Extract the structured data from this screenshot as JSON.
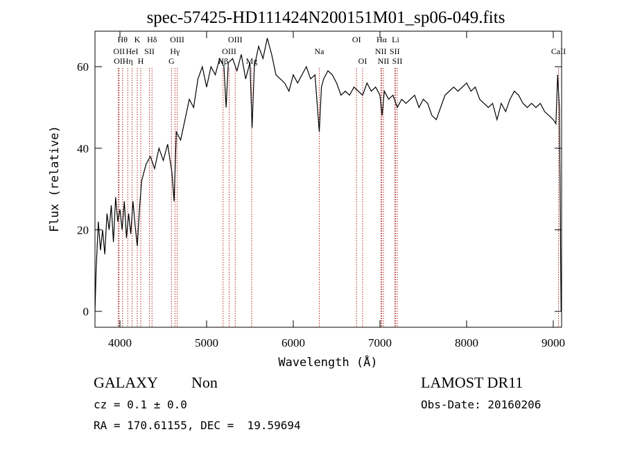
{
  "chart_data": {
    "type": "line",
    "title": "spec-57425-HD111424N200151M01_sp06-049.fits",
    "xlabel": "Wavelength (Å)",
    "ylabel": "Flux (relative)",
    "xlim": [
      3712,
      9096
    ],
    "ylim": [
      -3.9,
      68.7
    ],
    "xticks": [
      4000,
      5000,
      6000,
      7000,
      8000,
      9000
    ],
    "yticks": [
      0,
      20,
      40,
      60
    ],
    "x": [
      3712,
      3725,
      3750,
      3775,
      3800,
      3825,
      3850,
      3875,
      3900,
      3925,
      3950,
      3975,
      4000,
      4025,
      4050,
      4075,
      4100,
      4125,
      4150,
      4175,
      4200,
      4225,
      4250,
      4300,
      4350,
      4400,
      4450,
      4500,
      4550,
      4600,
      4625,
      4650,
      4700,
      4750,
      4800,
      4850,
      4900,
      4950,
      5000,
      5050,
      5100,
      5150,
      5200,
      5225,
      5250,
      5300,
      5350,
      5400,
      5450,
      5500,
      5525,
      5550,
      5600,
      5650,
      5700,
      5750,
      5800,
      5850,
      5900,
      5950,
      6000,
      6050,
      6100,
      6150,
      6200,
      6250,
      6300,
      6325,
      6350,
      6400,
      6450,
      6500,
      6550,
      6600,
      6650,
      6700,
      6750,
      6800,
      6850,
      6900,
      6950,
      7000,
      7025,
      7050,
      7100,
      7150,
      7200,
      7250,
      7300,
      7350,
      7400,
      7450,
      7500,
      7550,
      7600,
      7650,
      7700,
      7750,
      7800,
      7850,
      7900,
      7950,
      8000,
      8050,
      8100,
      8150,
      8200,
      8250,
      8300,
      8350,
      8400,
      8450,
      8500,
      8550,
      8600,
      8650,
      8700,
      8750,
      8800,
      8850,
      8900,
      8950,
      9000,
      9030,
      9050,
      9070,
      9090
    ],
    "series": [
      {
        "name": "Flux",
        "color": "#000000",
        "values": [
          0,
          10,
          22,
          15,
          20,
          14,
          24,
          20,
          26,
          17,
          28,
          22,
          25,
          20,
          27,
          18,
          24,
          19,
          27,
          21,
          16,
          25,
          32,
          36,
          38,
          35,
          40,
          37,
          41,
          34,
          27,
          44,
          42,
          47,
          52,
          50,
          57,
          60,
          55,
          60,
          58,
          62,
          60,
          50,
          61,
          62,
          59,
          63,
          57,
          61,
          45,
          60,
          65,
          62,
          67,
          63,
          58,
          57,
          56,
          54,
          58,
          56,
          58,
          60,
          57,
          58,
          44,
          55,
          57,
          59,
          58,
          56,
          53,
          54,
          53,
          55,
          54,
          53,
          56,
          54,
          55,
          53,
          48,
          54,
          52,
          53,
          50,
          52,
          51,
          52,
          53,
          50,
          52,
          51,
          48,
          47,
          50,
          53,
          54,
          55,
          54,
          55,
          56,
          54,
          55,
          52,
          51,
          50,
          51,
          47,
          51,
          49,
          52,
          54,
          53,
          51,
          50,
          51,
          50,
          51,
          49,
          48,
          47,
          46,
          58,
          50,
          0
        ]
      }
    ],
    "spectral_lines": [
      {
        "name": "OI",
        "wavelength": 3980
      },
      {
        "name": "OII",
        "wavelength": 3990
      },
      {
        "name": "Hθ",
        "wavelength": 4030
      },
      {
        "name": "Hη",
        "wavelength": 4090
      },
      {
        "name": "HeI",
        "wavelength": 4140
      },
      {
        "name": "K",
        "wavelength": 4200
      },
      {
        "name": "H",
        "wavelength": 4240
      },
      {
        "name": "SII",
        "wavelength": 4340
      },
      {
        "name": "Hδ",
        "wavelength": 4370
      },
      {
        "name": "G",
        "wavelength": 4595
      },
      {
        "name": "Hγ",
        "wavelength": 4635
      },
      {
        "name": "OIII",
        "wavelength": 4660
      },
      {
        "name": "Hβ",
        "wavelength": 5190
      },
      {
        "name": "OIII",
        "wavelength": 5260
      },
      {
        "name": "OIII",
        "wavelength": 5330
      },
      {
        "name": "Mg",
        "wavelength": 5520
      },
      {
        "name": "Na",
        "wavelength": 6300
      },
      {
        "name": "OI",
        "wavelength": 6730
      },
      {
        "name": "OI",
        "wavelength": 6800
      },
      {
        "name": "NII",
        "wavelength": 7010
      },
      {
        "name": "Hα",
        "wavelength": 7020
      },
      {
        "name": "NII",
        "wavelength": 7040
      },
      {
        "name": "SII",
        "wavelength": 7170
      },
      {
        "name": "Li",
        "wavelength": 7180
      },
      {
        "name": "SII",
        "wavelength": 7200
      },
      {
        "name": "CaII",
        "wavelength": 9060
      }
    ],
    "annotations": {
      "object_class": "GALAXY",
      "subclass": "Non",
      "cz": "cz = 0.1 ± 0.0",
      "coords": "RA = 170.61155, DEC =  19.59694",
      "survey": "LAMOST DR11",
      "obs_date": "Obs-Date: 20160206"
    }
  }
}
